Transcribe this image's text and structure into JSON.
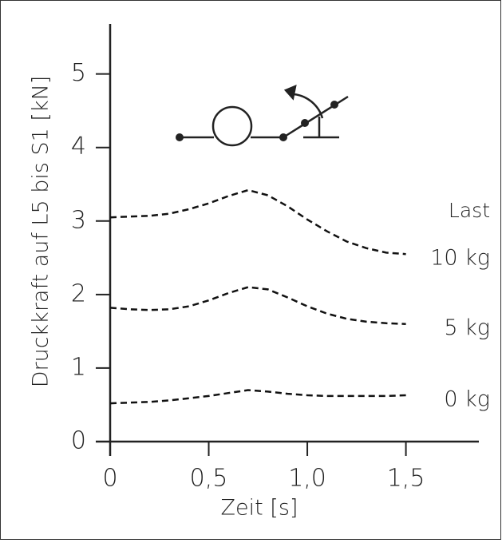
{
  "chart_data": {
    "type": "line",
    "x": [
      0,
      0.1,
      0.2,
      0.3,
      0.4,
      0.5,
      0.6,
      0.7,
      0.8,
      0.9,
      1.0,
      1.1,
      1.2,
      1.3,
      1.4,
      1.5
    ],
    "series": [
      {
        "name": "10 kg",
        "color": "#111111",
        "values": [
          3.05,
          3.06,
          3.07,
          3.1,
          3.16,
          3.24,
          3.34,
          3.42,
          3.35,
          3.2,
          3.02,
          2.86,
          2.72,
          2.63,
          2.57,
          2.55
        ]
      },
      {
        "name": "5 kg",
        "color": "#111111",
        "values": [
          1.82,
          1.8,
          1.79,
          1.8,
          1.84,
          1.92,
          2.02,
          2.1,
          2.07,
          1.96,
          1.84,
          1.74,
          1.67,
          1.63,
          1.61,
          1.6
        ]
      },
      {
        "name": "0 kg",
        "color": "#111111",
        "values": [
          0.52,
          0.53,
          0.54,
          0.56,
          0.59,
          0.62,
          0.66,
          0.7,
          0.68,
          0.65,
          0.63,
          0.62,
          0.62,
          0.62,
          0.62,
          0.63
        ]
      }
    ],
    "legend_title": "Last",
    "xlabel": "Zeit [s]",
    "ylabel": "Druckkraft auf L5 bis S1 [kN]",
    "xlim": [
      0,
      1.87
    ],
    "ylim": [
      0,
      5.68
    ],
    "xticks": [
      0,
      {
        "value": 0.5,
        "label": "0,5"
      },
      {
        "value": 1.0,
        "label": "1,0"
      },
      {
        "value": 1.5,
        "label": "1,5"
      }
    ],
    "yticks": [
      0,
      1,
      2,
      3,
      4,
      5
    ],
    "dashed": true
  }
}
